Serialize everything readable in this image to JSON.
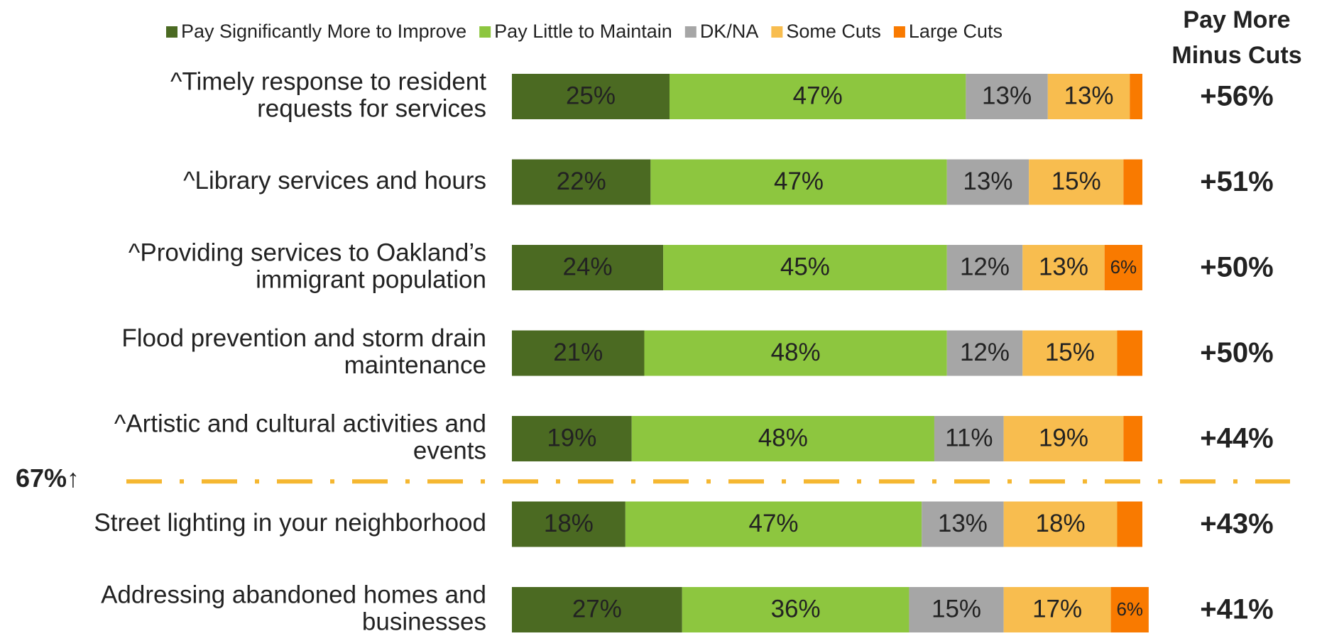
{
  "chart_data": {
    "type": "stacked_bar_horizontal",
    "xlim": [
      0,
      100
    ],
    "categories": [
      [
        "^Timely response to resident",
        "requests for services"
      ],
      [
        "^Library services and hours"
      ],
      [
        "^Providing services to Oakland’s",
        "immigrant population"
      ],
      [
        "Flood prevention and storm drain",
        "maintenance"
      ],
      [
        "^Artistic and cultural activities and",
        "events"
      ],
      [
        "Street lighting in your neighborhood"
      ],
      [
        "Addressing abandoned homes and",
        "businesses"
      ]
    ],
    "series": [
      {
        "name": "Pay Significantly More to Improve",
        "color": "#4b6a22",
        "values": [
          25,
          22,
          24,
          21,
          19,
          18,
          27
        ],
        "value_labels": [
          "25%",
          "22%",
          "24%",
          "21%",
          "19%",
          "18%",
          "27%"
        ]
      },
      {
        "name": "Pay Little to Maintain",
        "color": "#8dc63f",
        "values": [
          47,
          47,
          45,
          48,
          48,
          47,
          36
        ],
        "value_labels": [
          "47%",
          "47%",
          "45%",
          "48%",
          "48%",
          "47%",
          "36%"
        ]
      },
      {
        "name": "DK/NA",
        "color": "#a6a6a6",
        "values": [
          13,
          13,
          12,
          12,
          11,
          13,
          15
        ],
        "value_labels": [
          "13%",
          "13%",
          "12%",
          "12%",
          "11%",
          "13%",
          "15%"
        ]
      },
      {
        "name": "Some Cuts",
        "color": "#f8bd4f",
        "values": [
          13,
          15,
          13,
          15,
          19,
          18,
          17
        ],
        "value_labels": [
          "13%",
          "15%",
          "13%",
          "15%",
          "19%",
          "18%",
          "17%"
        ]
      },
      {
        "name": "Large Cuts",
        "color": "#f97a00",
        "values": [
          2,
          3,
          6,
          4,
          3,
          4,
          6
        ],
        "value_labels": [
          null,
          null,
          "6%",
          null,
          null,
          null,
          "6%"
        ]
      }
    ],
    "net_title": [
      "Pay More",
      "Minus Cuts"
    ],
    "net_values": [
      56,
      51,
      50,
      50,
      44,
      43,
      41
    ],
    "net_labels": [
      "+56%",
      "+51%",
      "+50%",
      "+50%",
      "+44%",
      "+43%",
      "+41%"
    ],
    "net_color": "#4b6a22",
    "threshold": {
      "value": 67,
      "label": "67%↑",
      "after_row": 4,
      "color": "#f5b731"
    },
    "legend": "top"
  }
}
